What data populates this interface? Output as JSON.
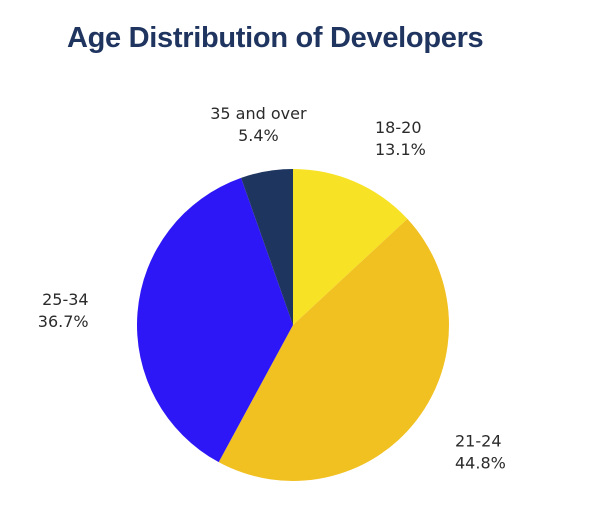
{
  "chart_data": {
    "type": "pie",
    "title": "Age Distribution of Developers",
    "start_angle_deg": 0,
    "direction": "clockwise",
    "slices": [
      {
        "label": "18-20",
        "value": 13.1,
        "value_text": "13.1%",
        "color": "#f7e225"
      },
      {
        "label": "21-24",
        "value": 44.8,
        "value_text": "44.8%",
        "color": "#f1c021"
      },
      {
        "label": "25-34",
        "value": 36.7,
        "value_text": "36.7%",
        "color": "#2d17f6"
      },
      {
        "label": "35 and over",
        "value": 5.4,
        "value_text": "5.4%",
        "color": "#1e3560"
      }
    ]
  }
}
